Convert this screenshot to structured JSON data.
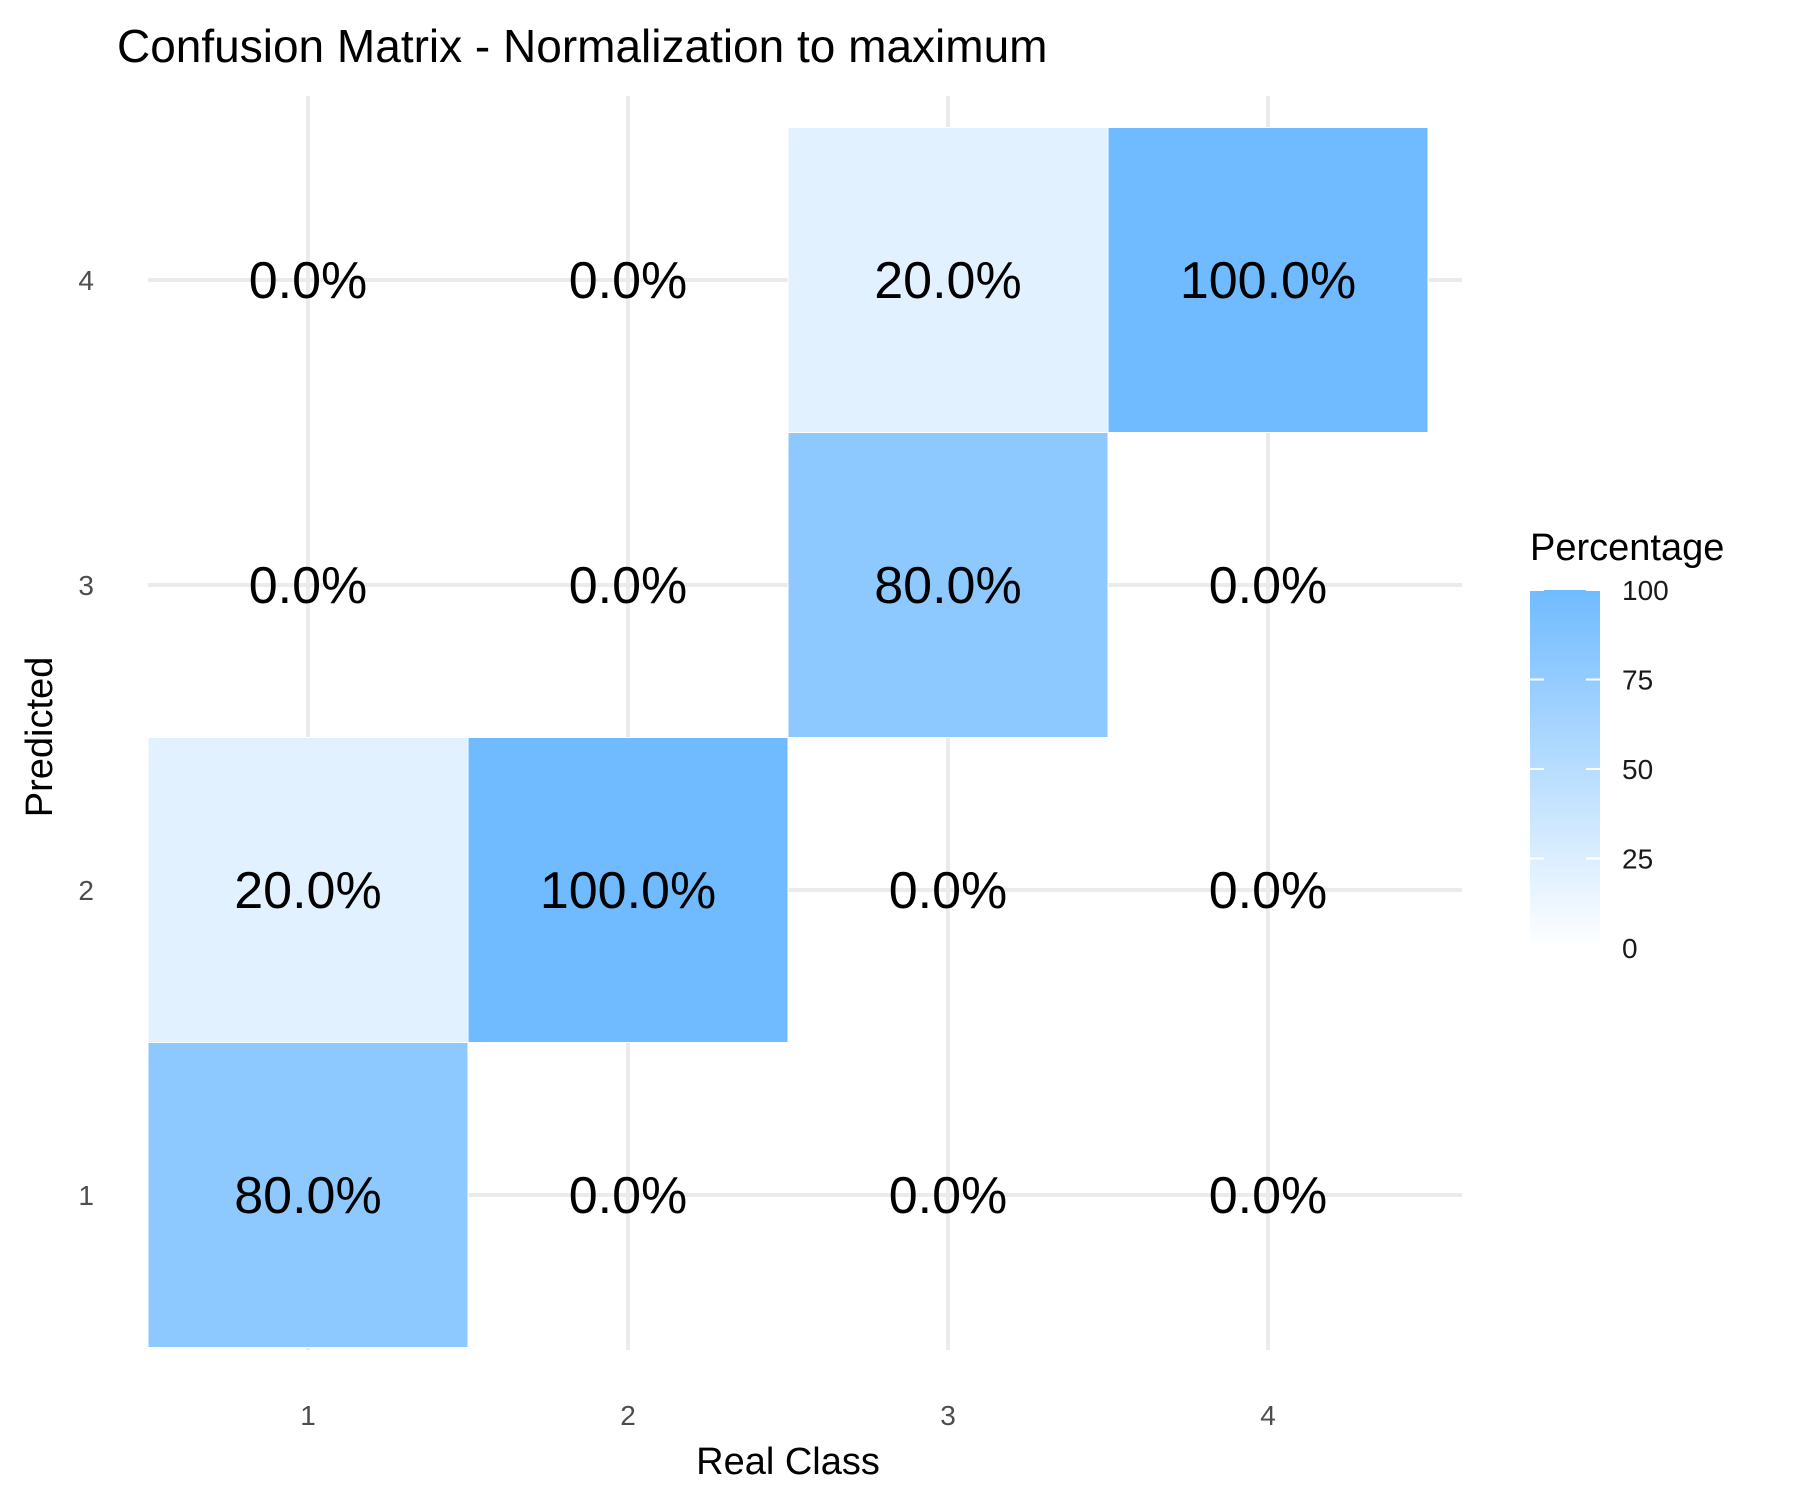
{
  "chart_data": {
    "type": "heatmap",
    "title": "Confusion Matrix - Normalization to maximum",
    "xlabel": "Real Class",
    "ylabel": "Predicted",
    "x_categories": [
      "1",
      "2",
      "3",
      "4"
    ],
    "y_categories": [
      "1",
      "2",
      "3",
      "4"
    ],
    "cells": [
      {
        "real": "1",
        "predicted": "1",
        "value": 80,
        "label": "80.0%"
      },
      {
        "real": "1",
        "predicted": "2",
        "value": 20,
        "label": "20.0%"
      },
      {
        "real": "1",
        "predicted": "3",
        "value": 0,
        "label": "0.0%"
      },
      {
        "real": "1",
        "predicted": "4",
        "value": 0,
        "label": "0.0%"
      },
      {
        "real": "2",
        "predicted": "1",
        "value": 0,
        "label": "0.0%"
      },
      {
        "real": "2",
        "predicted": "2",
        "value": 100,
        "label": "100.0%"
      },
      {
        "real": "2",
        "predicted": "3",
        "value": 0,
        "label": "0.0%"
      },
      {
        "real": "2",
        "predicted": "4",
        "value": 0,
        "label": "0.0%"
      },
      {
        "real": "3",
        "predicted": "1",
        "value": 0,
        "label": "0.0%"
      },
      {
        "real": "3",
        "predicted": "2",
        "value": 0,
        "label": "0.0%"
      },
      {
        "real": "3",
        "predicted": "3",
        "value": 80,
        "label": "80.0%"
      },
      {
        "real": "3",
        "predicted": "4",
        "value": 20,
        "label": "20.0%"
      },
      {
        "real": "4",
        "predicted": "1",
        "value": 0,
        "label": "0.0%"
      },
      {
        "real": "4",
        "predicted": "2",
        "value": 0,
        "label": "0.0%"
      },
      {
        "real": "4",
        "predicted": "3",
        "value": 0,
        "label": "0.0%"
      },
      {
        "real": "4",
        "predicted": "4",
        "value": 100,
        "label": "100.0%"
      }
    ],
    "legend": {
      "title": "Percentage",
      "ticks": [
        0,
        25,
        50,
        75,
        100
      ],
      "range": [
        0,
        100
      ],
      "placement": "right"
    },
    "colors": {
      "low": "#ffffff",
      "high": "#70bbff",
      "grid": "#ebebeb",
      "tile_border": "#ffffff"
    },
    "grid": true
  }
}
